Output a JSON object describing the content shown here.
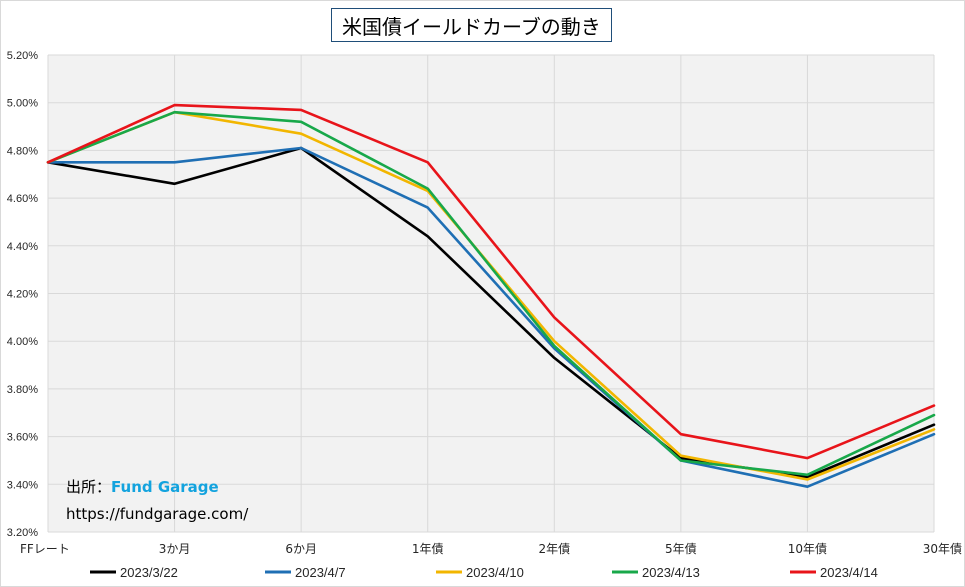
{
  "chart_data": {
    "type": "line",
    "title": "米国債イールドカーブの動き",
    "xlabel": "",
    "ylabel": "",
    "categories": [
      "FFレート",
      "3か月",
      "6か月",
      "1年債",
      "2年債",
      "5年債",
      "10年債",
      "30年債"
    ],
    "y_ticks": [
      "3.20%",
      "3.40%",
      "3.60%",
      "3.80%",
      "4.00%",
      "4.20%",
      "4.40%",
      "4.60%",
      "4.80%",
      "5.00%",
      "5.20%"
    ],
    "ylim": [
      3.2,
      5.2
    ],
    "grid": true,
    "legend_position": "bottom",
    "series": [
      {
        "name": "2023/3/22",
        "color": "#000000",
        "values": [
          4.75,
          4.66,
          4.81,
          4.44,
          3.93,
          3.51,
          3.43,
          3.65
        ]
      },
      {
        "name": "2023/4/7",
        "color": "#1f6fb4",
        "values": [
          4.75,
          4.75,
          4.81,
          4.56,
          3.97,
          3.5,
          3.39,
          3.61
        ]
      },
      {
        "name": "2023/4/10",
        "color": "#f2b600",
        "values": [
          4.75,
          4.96,
          4.87,
          4.63,
          4.0,
          3.52,
          3.42,
          3.63
        ]
      },
      {
        "name": "2023/4/13",
        "color": "#18a84a",
        "values": [
          4.75,
          4.96,
          4.92,
          4.64,
          3.98,
          3.5,
          3.44,
          3.69
        ]
      },
      {
        "name": "2023/4/14",
        "color": "#e8141a",
        "values": [
          4.75,
          4.99,
          4.97,
          4.75,
          4.1,
          3.61,
          3.51,
          3.73
        ]
      }
    ]
  },
  "source": {
    "label": "出所：",
    "name": "Fund Garage",
    "name_color": "#13a3de",
    "url": "https://fundgarage.com/"
  }
}
